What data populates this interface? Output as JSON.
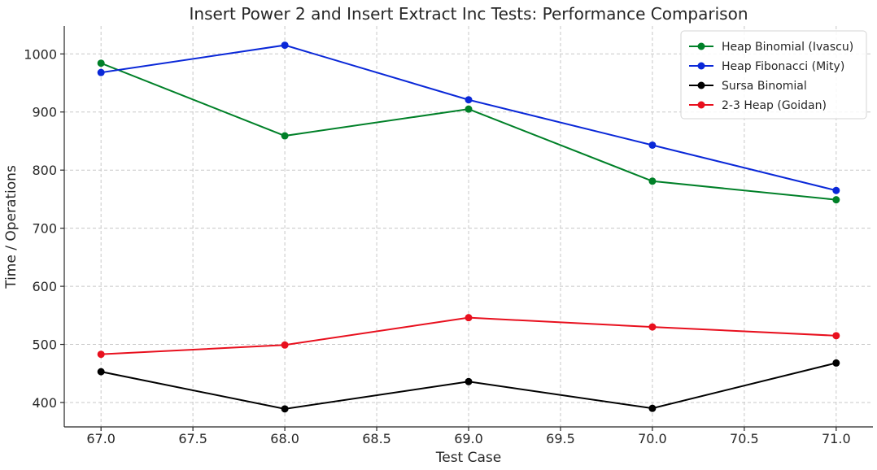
{
  "chart_data": {
    "type": "line",
    "title": "Insert Power 2 and Insert Extract Inc Tests: Performance Comparison",
    "xlabel": "Test Case",
    "ylabel": "Time / Operations",
    "x": [
      67,
      68,
      69,
      70,
      71
    ],
    "xlim": [
      66.8,
      71.2
    ],
    "ylim": [
      358,
      1048
    ],
    "x_ticks": [
      67.0,
      67.5,
      68.0,
      68.5,
      69.0,
      69.5,
      70.0,
      70.5,
      71.0
    ],
    "x_tick_labels": [
      "67.0",
      "67.5",
      "68.0",
      "68.5",
      "69.0",
      "69.5",
      "70.0",
      "70.5",
      "71.0"
    ],
    "y_ticks": [
      400,
      500,
      600,
      700,
      800,
      900,
      1000
    ],
    "y_tick_labels": [
      "400",
      "500",
      "600",
      "700",
      "800",
      "900",
      "1000"
    ],
    "grid": true,
    "legend_position": "top-right",
    "series": [
      {
        "name": "Heap Binomial (Ivascu)",
        "color": "#008028",
        "values": [
          984,
          859,
          905,
          781,
          749
        ]
      },
      {
        "name": "Heap Fibonacci (Mity)",
        "color": "#0a28d8",
        "values": [
          968,
          1015,
          921,
          843,
          765
        ]
      },
      {
        "name": "Sursa Binomial",
        "color": "#000000",
        "values": [
          453,
          389,
          436,
          390,
          468
        ]
      },
      {
        "name": "2-3 Heap (Goidan)",
        "color": "#e8101e",
        "values": [
          483,
          499,
          546,
          530,
          515
        ]
      }
    ]
  }
}
